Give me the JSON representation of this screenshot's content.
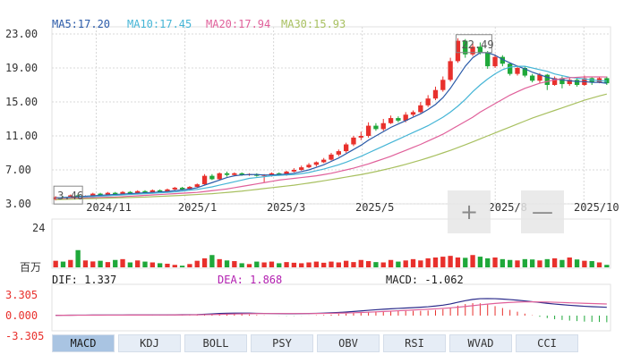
{
  "ma_legend": [
    {
      "label": "MA5:17.20",
      "color": "#2a5aa8"
    },
    {
      "label": "MA10:17.45",
      "color": "#45b5d6"
    },
    {
      "label": "MA20:17.94",
      "color": "#e0609a"
    },
    {
      "label": "MA30:15.93",
      "color": "#a8c060"
    }
  ],
  "price_ticks": [
    "23.00",
    "19.00",
    "15.00",
    "11.00",
    "7.00",
    "3.00"
  ],
  "date_labels": [
    "2024/11",
    "2025/1",
    "2025/3",
    "2025/5",
    "2025/8",
    "2025/10"
  ],
  "annotations": {
    "high": "22.49",
    "low": "3.46"
  },
  "volume_axis": {
    "top": "24",
    "unit": "百万"
  },
  "macd_stats": {
    "dif": "DIF: 1.337",
    "dea": "DEA: 1.868",
    "macd": "MACD: -1.062"
  },
  "macd_ticks": [
    "3.305",
    "0.000",
    "-3.305"
  ],
  "zoom": {
    "in": "+",
    "out": "—"
  },
  "tabs": [
    {
      "label": "MACD",
      "active": true
    },
    {
      "label": "KDJ",
      "active": false
    },
    {
      "label": "BOLL",
      "active": false
    },
    {
      "label": "PSY",
      "active": false
    },
    {
      "label": "OBV",
      "active": false
    },
    {
      "label": "RSI",
      "active": false
    },
    {
      "label": "WVAD",
      "active": false
    },
    {
      "label": "CCI",
      "active": false
    }
  ],
  "colors": {
    "up": "#e8302c",
    "down": "#1fa83a",
    "grid": "#d8d8d8",
    "axis_text": "#333333",
    "dea_text": "#b21fb0",
    "dif_text": "#1a1a1a"
  },
  "chart_data": {
    "type": "candlestick",
    "y_range": [
      3,
      23
    ],
    "volume_range": [
      0,
      24
    ],
    "macd_range": [
      -3.305,
      3.305
    ],
    "start_month": "2024/10",
    "candles": [
      [
        3.5,
        3.8,
        3.4,
        3.9
      ],
      [
        3.8,
        3.7,
        3.6,
        3.9
      ],
      [
        3.7,
        4.0,
        3.6,
        4.1
      ],
      [
        4.0,
        3.7,
        3.6,
        4.2
      ],
      [
        3.7,
        3.9,
        3.6,
        4.0
      ],
      [
        3.9,
        4.2,
        3.8,
        4.3
      ],
      [
        4.2,
        4.0,
        3.9,
        4.3
      ],
      [
        4.0,
        4.3,
        3.9,
        4.4
      ],
      [
        4.3,
        4.1,
        4.0,
        4.4
      ],
      [
        4.1,
        4.4,
        4.0,
        4.5
      ],
      [
        4.4,
        4.2,
        4.1,
        4.5
      ],
      [
        4.2,
        4.5,
        4.1,
        4.6
      ],
      [
        4.5,
        4.3,
        4.2,
        4.6
      ],
      [
        4.3,
        4.6,
        4.2,
        4.7
      ],
      [
        4.6,
        4.4,
        4.3,
        4.7
      ],
      [
        4.4,
        4.7,
        4.3,
        4.8
      ],
      [
        4.7,
        4.9,
        4.6,
        5.0
      ],
      [
        4.9,
        4.7,
        4.6,
        5.0
      ],
      [
        4.7,
        5.0,
        4.6,
        5.1
      ],
      [
        5.0,
        5.3,
        4.9,
        5.4
      ],
      [
        5.3,
        6.3,
        5.2,
        6.5
      ],
      [
        6.3,
        5.9,
        5.8,
        6.5
      ],
      [
        5.9,
        6.6,
        5.8,
        6.7
      ],
      [
        6.6,
        6.4,
        6.2,
        6.8
      ],
      [
        6.4,
        6.6,
        6.3,
        6.7
      ],
      [
        6.6,
        6.4,
        6.3,
        6.7
      ],
      [
        6.4,
        6.5,
        6.3,
        6.6
      ],
      [
        6.5,
        6.3,
        6.2,
        6.6
      ],
      [
        6.3,
        6.4,
        5.5,
        6.5
      ],
      [
        6.4,
        6.6,
        6.2,
        6.7
      ],
      [
        6.6,
        6.4,
        6.3,
        6.7
      ],
      [
        6.4,
        6.8,
        6.3,
        6.9
      ],
      [
        6.8,
        7.0,
        6.7,
        7.2
      ],
      [
        7.0,
        7.3,
        6.9,
        7.5
      ],
      [
        7.3,
        7.6,
        7.2,
        7.8
      ],
      [
        7.6,
        7.9,
        7.4,
        8.0
      ],
      [
        7.9,
        8.2,
        7.8,
        8.4
      ],
      [
        8.2,
        8.8,
        8.1,
        9.0
      ],
      [
        8.8,
        9.2,
        8.6,
        9.4
      ],
      [
        9.2,
        10.0,
        9.0,
        10.2
      ],
      [
        10.0,
        10.8,
        9.8,
        11.0
      ],
      [
        10.8,
        11.0,
        10.5,
        11.5
      ],
      [
        11.0,
        12.2,
        10.8,
        12.6
      ],
      [
        12.2,
        11.8,
        11.6,
        12.5
      ],
      [
        11.8,
        12.5,
        11.6,
        13.0
      ],
      [
        12.5,
        13.1,
        12.4,
        13.4
      ],
      [
        13.1,
        12.8,
        12.6,
        13.3
      ],
      [
        12.8,
        13.5,
        12.6,
        13.8
      ],
      [
        13.5,
        13.8,
        13.3,
        14.0
      ],
      [
        13.8,
        14.6,
        13.7,
        15.0
      ],
      [
        14.6,
        15.4,
        14.4,
        15.8
      ],
      [
        15.4,
        16.4,
        15.2,
        16.8
      ],
      [
        16.4,
        17.6,
        16.2,
        18.0
      ],
      [
        17.6,
        19.8,
        17.4,
        20.2
      ],
      [
        19.8,
        22.2,
        19.6,
        22.5
      ],
      [
        22.2,
        20.6,
        20.2,
        22.4
      ],
      [
        20.6,
        21.5,
        20.4,
        21.9
      ],
      [
        21.5,
        20.8,
        20.6,
        22.0
      ],
      [
        20.8,
        19.2,
        18.9,
        21.0
      ],
      [
        19.2,
        20.3,
        19.0,
        20.6
      ],
      [
        20.3,
        19.5,
        19.2,
        20.5
      ],
      [
        19.5,
        18.3,
        18.1,
        19.6
      ],
      [
        18.3,
        19.0,
        18.1,
        19.3
      ],
      [
        19.0,
        18.1,
        17.9,
        19.2
      ],
      [
        18.1,
        17.5,
        17.3,
        18.3
      ],
      [
        17.5,
        18.2,
        17.2,
        18.4
      ],
      [
        18.2,
        17.0,
        16.4,
        18.3
      ],
      [
        17.0,
        17.8,
        16.9,
        18.0
      ],
      [
        17.8,
        17.1,
        16.6,
        18.0
      ],
      [
        17.1,
        17.6,
        16.9,
        17.9
      ],
      [
        17.6,
        17.0,
        16.8,
        17.8
      ],
      [
        17.0,
        17.8,
        16.9,
        18.1
      ],
      [
        17.8,
        17.3,
        17.0,
        18.0
      ],
      [
        17.3,
        17.8,
        17.2,
        18.0
      ],
      [
        17.8,
        17.2,
        17.0,
        18.0
      ]
    ],
    "volume": [
      4.0,
      3.5,
      4.5,
      10.5,
      4.2,
      3.6,
      4.0,
      3.2,
      4.5,
      5.0,
      3.0,
      4.2,
      3.5,
      3.0,
      2.5,
      2.2,
      1.5,
      1.0,
      2.0,
      4.0,
      5.5,
      7.5,
      5.0,
      4.2,
      3.8,
      2.5,
      2.0,
      3.5,
      3.0,
      3.5,
      2.5,
      3.2,
      2.8,
      2.5,
      3.0,
      3.5,
      2.8,
      3.5,
      3.0,
      4.0,
      3.2,
      4.5,
      3.8,
      3.2,
      3.0,
      4.5,
      3.5,
      4.2,
      5.0,
      4.2,
      5.5,
      6.0,
      6.5,
      7.0,
      6.0,
      5.8,
      7.5,
      6.5,
      5.5,
      6.0,
      5.0,
      4.5,
      4.2,
      5.0,
      4.8,
      4.2,
      5.0,
      5.5,
      4.5,
      6.0,
      4.8,
      4.0,
      3.8,
      3.0,
      1.5
    ],
    "ma": {
      "MA5": [
        3.7,
        3.75,
        3.8,
        3.85,
        3.9,
        3.95,
        4.0,
        4.05,
        4.1,
        4.15,
        4.2,
        4.25,
        4.3,
        4.35,
        4.4,
        4.45,
        4.55,
        4.65,
        4.75,
        4.9,
        5.2,
        5.5,
        5.8,
        6.1,
        6.3,
        6.4,
        6.45,
        6.45,
        6.4,
        6.4,
        6.45,
        6.5,
        6.6,
        6.8,
        7.0,
        7.3,
        7.6,
        8.0,
        8.4,
        8.9,
        9.4,
        9.9,
        10.5,
        11.0,
        11.5,
        12.0,
        12.4,
        12.8,
        13.2,
        13.6,
        14.1,
        14.7,
        15.5,
        16.6,
        17.9,
        19.2,
        20.2,
        20.8,
        20.8,
        20.5,
        20.0,
        19.6,
        19.2,
        18.9,
        18.5,
        18.2,
        17.9,
        17.7,
        17.6,
        17.5,
        17.4,
        17.4,
        17.3,
        17.3,
        17.2
      ],
      "MA10": [
        3.65,
        3.7,
        3.72,
        3.75,
        3.8,
        3.85,
        3.9,
        3.95,
        4.0,
        4.05,
        4.1,
        4.15,
        4.2,
        4.25,
        4.3,
        4.35,
        4.4,
        4.5,
        4.6,
        4.7,
        4.85,
        5.0,
        5.2,
        5.4,
        5.6,
        5.8,
        6.0,
        6.1,
        6.2,
        6.3,
        6.35,
        6.4,
        6.45,
        6.55,
        6.7,
        6.9,
        7.1,
        7.35,
        7.6,
        7.9,
        8.25,
        8.6,
        9.0,
        9.4,
        9.8,
        10.2,
        10.6,
        11.0,
        11.4,
        11.8,
        12.2,
        12.7,
        13.2,
        13.8,
        14.5,
        15.3,
        16.2,
        17.0,
        17.7,
        18.3,
        18.8,
        19.1,
        19.2,
        19.2,
        19.0,
        18.8,
        18.6,
        18.3,
        18.1,
        17.9,
        17.8,
        17.7,
        17.6,
        17.5,
        17.45
      ],
      "MA20": [
        3.6,
        3.62,
        3.65,
        3.67,
        3.7,
        3.72,
        3.75,
        3.78,
        3.8,
        3.85,
        3.9,
        3.95,
        4.0,
        4.05,
        4.1,
        4.15,
        4.2,
        4.25,
        4.3,
        4.35,
        4.45,
        4.55,
        4.65,
        4.75,
        4.9,
        5.05,
        5.2,
        5.35,
        5.5,
        5.65,
        5.8,
        5.9,
        6.0,
        6.1,
        6.2,
        6.3,
        6.45,
        6.6,
        6.8,
        7.0,
        7.2,
        7.45,
        7.7,
        8.0,
        8.3,
        8.6,
        8.95,
        9.3,
        9.65,
        10.0,
        10.4,
        10.8,
        11.2,
        11.7,
        12.2,
        12.7,
        13.2,
        13.8,
        14.3,
        14.8,
        15.3,
        15.8,
        16.2,
        16.6,
        16.9,
        17.2,
        17.4,
        17.6,
        17.75,
        17.85,
        17.9,
        17.95,
        17.95,
        17.95,
        17.94
      ],
      "MA30": [
        3.5,
        3.52,
        3.55,
        3.57,
        3.6,
        3.62,
        3.65,
        3.67,
        3.7,
        3.72,
        3.75,
        3.78,
        3.8,
        3.84,
        3.88,
        3.92,
        3.96,
        4.0,
        4.05,
        4.1,
        4.15,
        4.2,
        4.27,
        4.34,
        4.42,
        4.5,
        4.6,
        4.7,
        4.8,
        4.9,
        5.0,
        5.1,
        5.2,
        5.32,
        5.45,
        5.58,
        5.72,
        5.86,
        6.0,
        6.15,
        6.3,
        6.45,
        6.62,
        6.8,
        7.0,
        7.2,
        7.42,
        7.65,
        7.9,
        8.15,
        8.42,
        8.7,
        9.0,
        9.3,
        9.62,
        9.95,
        10.3,
        10.65,
        11.0,
        11.35,
        11.7,
        12.05,
        12.4,
        12.75,
        13.1,
        13.4,
        13.7,
        14.0,
        14.3,
        14.6,
        14.9,
        15.2,
        15.45,
        15.7,
        15.93
      ]
    },
    "macd": {
      "dif": [
        0.05,
        0.06,
        0.07,
        0.08,
        0.08,
        0.09,
        0.09,
        0.1,
        0.1,
        0.1,
        0.11,
        0.11,
        0.11,
        0.12,
        0.12,
        0.12,
        0.13,
        0.14,
        0.15,
        0.17,
        0.22,
        0.28,
        0.34,
        0.38,
        0.4,
        0.4,
        0.39,
        0.37,
        0.35,
        0.33,
        0.32,
        0.31,
        0.31,
        0.32,
        0.34,
        0.37,
        0.4,
        0.45,
        0.51,
        0.58,
        0.66,
        0.75,
        0.85,
        0.94,
        1.02,
        1.1,
        1.16,
        1.22,
        1.28,
        1.35,
        1.43,
        1.54,
        1.68,
        1.88,
        2.15,
        2.4,
        2.6,
        2.72,
        2.74,
        2.72,
        2.66,
        2.58,
        2.48,
        2.36,
        2.24,
        2.11,
        1.98,
        1.86,
        1.76,
        1.66,
        1.58,
        1.5,
        1.44,
        1.39,
        1.337
      ],
      "dea": [
        0.04,
        0.05,
        0.05,
        0.06,
        0.06,
        0.07,
        0.07,
        0.08,
        0.08,
        0.08,
        0.09,
        0.09,
        0.09,
        0.1,
        0.1,
        0.1,
        0.11,
        0.11,
        0.12,
        0.13,
        0.15,
        0.17,
        0.2,
        0.23,
        0.26,
        0.29,
        0.31,
        0.32,
        0.33,
        0.33,
        0.33,
        0.33,
        0.33,
        0.33,
        0.33,
        0.34,
        0.35,
        0.37,
        0.39,
        0.42,
        0.46,
        0.5,
        0.55,
        0.6,
        0.66,
        0.72,
        0.78,
        0.84,
        0.9,
        0.96,
        1.02,
        1.09,
        1.16,
        1.25,
        1.35,
        1.47,
        1.6,
        1.73,
        1.85,
        1.96,
        2.05,
        2.12,
        2.17,
        2.2,
        2.21,
        2.2,
        2.18,
        2.15,
        2.11,
        2.06,
        2.02,
        1.98,
        1.94,
        1.9,
        1.868
      ],
      "hist": [
        0.02,
        0.02,
        0.04,
        0.04,
        0.04,
        0.04,
        0.04,
        0.04,
        0.04,
        0.04,
        0.04,
        0.04,
        0.04,
        0.04,
        0.04,
        0.04,
        0.04,
        0.06,
        0.06,
        0.08,
        0.14,
        0.22,
        0.28,
        0.3,
        0.28,
        0.22,
        0.16,
        0.1,
        0.04,
        0.0,
        -0.02,
        -0.04,
        -0.04,
        -0.02,
        0.02,
        0.06,
        0.1,
        0.16,
        0.24,
        0.32,
        0.4,
        0.5,
        0.6,
        0.68,
        0.72,
        0.76,
        0.76,
        0.76,
        0.76,
        0.78,
        0.82,
        0.9,
        1.04,
        1.26,
        1.6,
        1.86,
        2.0,
        1.98,
        1.78,
        1.52,
        1.22,
        0.92,
        0.62,
        0.32,
        0.06,
        -0.18,
        -0.4,
        -0.58,
        -0.7,
        -0.8,
        -0.88,
        -0.96,
        -1.0,
        -1.02,
        -1.062
      ]
    }
  }
}
